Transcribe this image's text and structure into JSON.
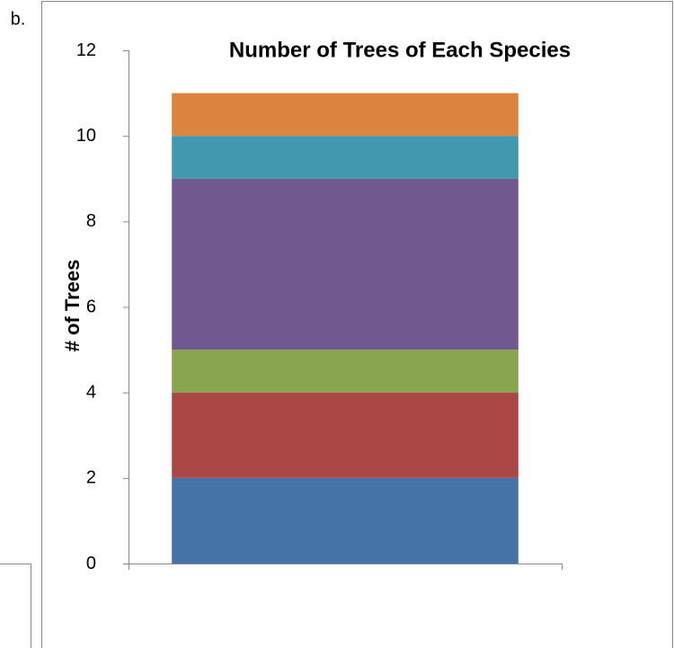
{
  "panel_label": "b.",
  "chart_data": {
    "type": "bar",
    "stacked": true,
    "title": "Number of Trees of Each Species",
    "y_label": "# of Trees",
    "categories": [
      null
    ],
    "series": [
      {
        "color": "#4572a7",
        "values": [
          2
        ]
      },
      {
        "color": "#aa4643",
        "values": [
          2
        ]
      },
      {
        "color": "#89a54e",
        "values": [
          1
        ]
      },
      {
        "color": "#71588f",
        "values": [
          4
        ]
      },
      {
        "color": "#4198af",
        "values": [
          1
        ]
      },
      {
        "color": "#db843d",
        "values": [
          1
        ]
      }
    ],
    "ylim": [
      0,
      12
    ],
    "yticks": [
      0,
      2,
      4,
      6,
      8,
      10,
      12
    ],
    "grid": false
  }
}
